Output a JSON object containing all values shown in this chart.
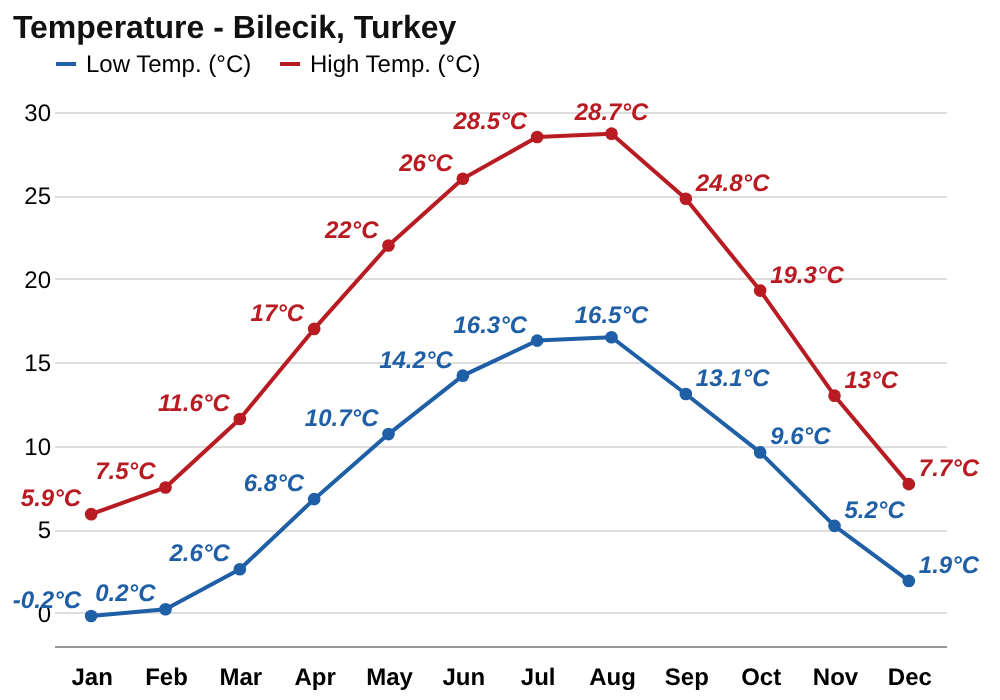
{
  "chart_data": {
    "type": "line",
    "title": "Temperature - Bilecik, Turkey",
    "categories": [
      "Jan",
      "Feb",
      "Mar",
      "Apr",
      "May",
      "Jun",
      "Jul",
      "Aug",
      "Sep",
      "Oct",
      "Nov",
      "Dec"
    ],
    "series": [
      {
        "name": "Low Temp. (°C)",
        "color": "#1f5fa6",
        "values": [
          -0.2,
          0.2,
          2.6,
          6.8,
          10.7,
          14.2,
          16.3,
          16.5,
          13.1,
          9.6,
          5.2,
          1.9
        ],
        "value_labels": [
          "-0.2°C",
          "0.2°C",
          "2.6°C",
          "6.8°C",
          "10.7°C",
          "14.2°C",
          "16.3°C",
          "16.5°C",
          "13.1°C",
          "9.6°C",
          "5.2°C",
          "1.9°C"
        ]
      },
      {
        "name": "High Temp. (°C)",
        "color": "#b81c22",
        "values": [
          5.9,
          7.5,
          11.6,
          17,
          22,
          26,
          28.5,
          28.7,
          24.8,
          19.3,
          13,
          7.7
        ],
        "value_labels": [
          "5.9°C",
          "7.5°C",
          "11.6°C",
          "17°C",
          "22°C",
          "26°C",
          "28.5°C",
          "28.7°C",
          "24.8°C",
          "19.3°C",
          "13°C",
          "7.7°C"
        ]
      }
    ],
    "ylim": [
      -2,
      30
    ],
    "yticks": [
      0,
      5,
      10,
      15,
      20,
      25,
      30
    ],
    "grid": "y",
    "legend": "top left",
    "marker": "circle",
    "line_style": "solid"
  }
}
